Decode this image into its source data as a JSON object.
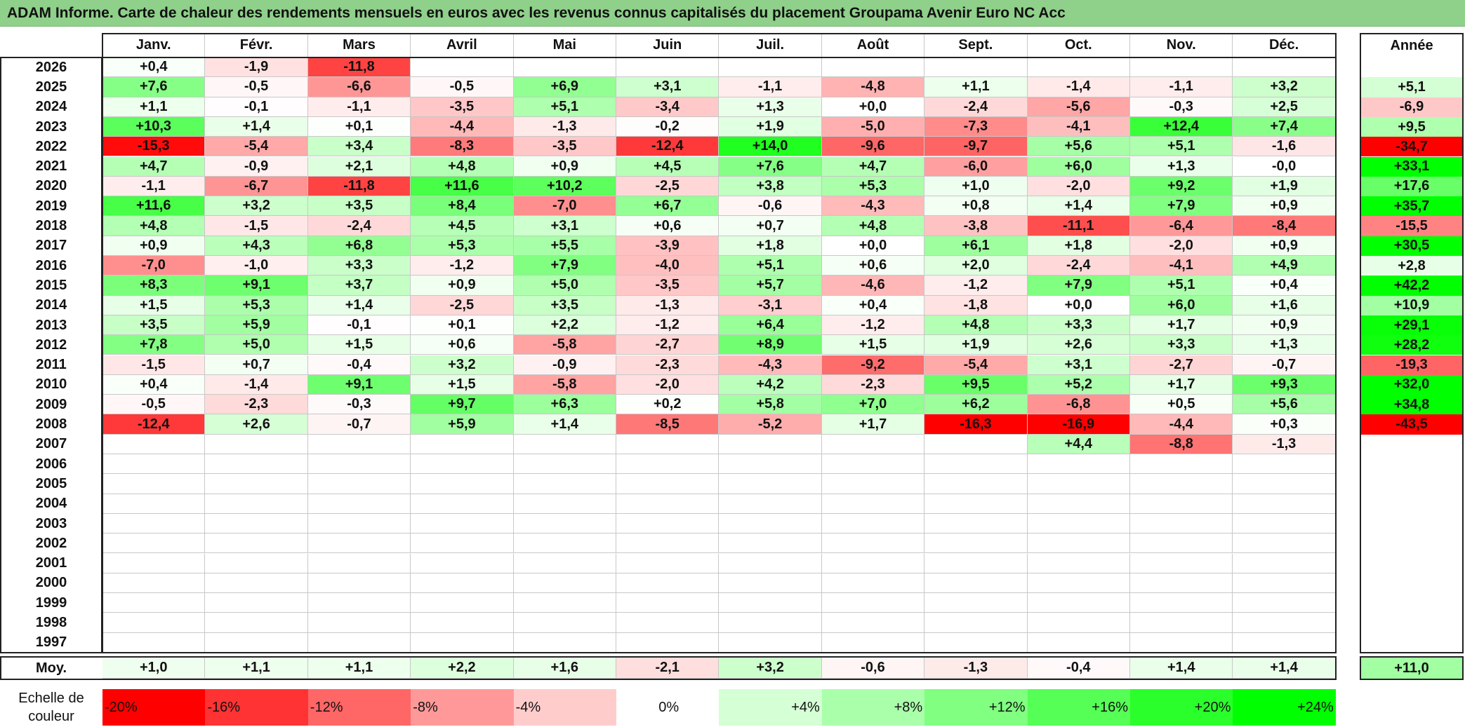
{
  "title": "ADAM Informe. Carte de chaleur des rendements mensuels en euros avec les revenus connus capitalisés du placement Groupama Avenir Euro NC Acc",
  "chart_data": {
    "type": "heatmap",
    "title": "ADAM Informe. Carte de chaleur des rendements mensuels en euros avec les revenus connus capitalisés du placement Groupama Avenir Euro NC Acc",
    "months": [
      "Janv.",
      "Févr.",
      "Mars",
      "Avril",
      "Mai",
      "Juin",
      "Juil.",
      "Août",
      "Sept.",
      "Oct.",
      "Nov.",
      "Déc."
    ],
    "year_header": "Année",
    "rows": [
      {
        "year": "2026",
        "values": [
          "+0,4",
          "-1,9",
          "-11,8",
          "",
          "",
          "",
          "",
          "",
          "",
          "",
          "",
          ""
        ],
        "annual": ""
      },
      {
        "year": "2025",
        "values": [
          "+7,6",
          "-0,5",
          "-6,6",
          "-0,5",
          "+6,9",
          "+3,1",
          "-1,1",
          "-4,8",
          "+1,1",
          "-1,4",
          "-1,1",
          "+3,2"
        ],
        "annual": "+5,1"
      },
      {
        "year": "2024",
        "values": [
          "+1,1",
          "-0,1",
          "-1,1",
          "-3,5",
          "+5,1",
          "-3,4",
          "+1,3",
          "+0,0",
          "-2,4",
          "-5,6",
          "-0,3",
          "+2,5"
        ],
        "annual": "-6,9"
      },
      {
        "year": "2023",
        "values": [
          "+10,3",
          "+1,4",
          "+0,1",
          "-4,4",
          "-1,3",
          "-0,2",
          "+1,9",
          "-5,0",
          "-7,3",
          "-4,1",
          "+12,4",
          "+7,4"
        ],
        "annual": "+9,5"
      },
      {
        "year": "2022",
        "values": [
          "-15,3",
          "-5,4",
          "+3,4",
          "-8,3",
          "-3,5",
          "-12,4",
          "+14,0",
          "-9,6",
          "-9,7",
          "+5,6",
          "+5,1",
          "-1,6"
        ],
        "annual": "-34,7"
      },
      {
        "year": "2021",
        "values": [
          "+4,7",
          "-0,9",
          "+2,1",
          "+4,8",
          "+0,9",
          "+4,5",
          "+7,6",
          "+4,7",
          "-6,0",
          "+6,0",
          "+1,3",
          "-0,0"
        ],
        "annual": "+33,1"
      },
      {
        "year": "2020",
        "values": [
          "-1,1",
          "-6,7",
          "-11,8",
          "+11,6",
          "+10,2",
          "-2,5",
          "+3,8",
          "+5,3",
          "+1,0",
          "-2,0",
          "+9,2",
          "+1,9"
        ],
        "annual": "+17,6"
      },
      {
        "year": "2019",
        "values": [
          "+11,6",
          "+3,2",
          "+3,5",
          "+8,4",
          "-7,0",
          "+6,7",
          "-0,6",
          "-4,3",
          "+0,8",
          "+1,4",
          "+7,9",
          "+0,9"
        ],
        "annual": "+35,7"
      },
      {
        "year": "2018",
        "values": [
          "+4,8",
          "-1,5",
          "-2,4",
          "+4,5",
          "+3,1",
          "+0,6",
          "+0,7",
          "+4,8",
          "-3,8",
          "-11,1",
          "-6,4",
          "-8,4"
        ],
        "annual": "-15,5"
      },
      {
        "year": "2017",
        "values": [
          "+0,9",
          "+4,3",
          "+6,8",
          "+5,3",
          "+5,5",
          "-3,9",
          "+1,8",
          "+0,0",
          "+6,1",
          "+1,8",
          "-2,0",
          "+0,9"
        ],
        "annual": "+30,5"
      },
      {
        "year": "2016",
        "values": [
          "-7,0",
          "-1,0",
          "+3,3",
          "-1,2",
          "+7,9",
          "-4,0",
          "+5,1",
          "+0,6",
          "+2,0",
          "-2,4",
          "-4,1",
          "+4,9"
        ],
        "annual": "+2,8"
      },
      {
        "year": "2015",
        "values": [
          "+8,3",
          "+9,1",
          "+3,7",
          "+0,9",
          "+5,0",
          "-3,5",
          "+5,7",
          "-4,6",
          "-1,2",
          "+7,9",
          "+5,1",
          "+0,4"
        ],
        "annual": "+42,2"
      },
      {
        "year": "2014",
        "values": [
          "+1,5",
          "+5,3",
          "+1,4",
          "-2,5",
          "+3,5",
          "-1,3",
          "-3,1",
          "+0,4",
          "-1,8",
          "+0,0",
          "+6,0",
          "+1,6"
        ],
        "annual": "+10,9"
      },
      {
        "year": "2013",
        "values": [
          "+3,5",
          "+5,9",
          "-0,1",
          "+0,1",
          "+2,2",
          "-1,2",
          "+6,4",
          "-1,2",
          "+4,8",
          "+3,3",
          "+1,7",
          "+0,9"
        ],
        "annual": "+29,1"
      },
      {
        "year": "2012",
        "values": [
          "+7,8",
          "+5,0",
          "+1,5",
          "+0,6",
          "-5,8",
          "-2,7",
          "+8,9",
          "+1,5",
          "+1,9",
          "+2,6",
          "+3,3",
          "+1,3"
        ],
        "annual": "+28,2"
      },
      {
        "year": "2011",
        "values": [
          "-1,5",
          "+0,7",
          "-0,4",
          "+3,2",
          "-0,9",
          "-2,3",
          "-4,3",
          "-9,2",
          "-5,4",
          "+3,1",
          "-2,7",
          "-0,7"
        ],
        "annual": "-19,3"
      },
      {
        "year": "2010",
        "values": [
          "+0,4",
          "-1,4",
          "+9,1",
          "+1,5",
          "-5,8",
          "-2,0",
          "+4,2",
          "-2,3",
          "+9,5",
          "+5,2",
          "+1,7",
          "+9,3"
        ],
        "annual": "+32,0"
      },
      {
        "year": "2009",
        "values": [
          "-0,5",
          "-2,3",
          "-0,3",
          "+9,7",
          "+6,3",
          "+0,2",
          "+5,8",
          "+7,0",
          "+6,2",
          "-6,8",
          "+0,5",
          "+5,6"
        ],
        "annual": "+34,8"
      },
      {
        "year": "2008",
        "values": [
          "-12,4",
          "+2,6",
          "-0,7",
          "+5,9",
          "+1,4",
          "-8,5",
          "-5,2",
          "+1,7",
          "-16,3",
          "-16,9",
          "-4,4",
          "+0,3"
        ],
        "annual": "-43,5"
      },
      {
        "year": "2007",
        "values": [
          "",
          "",
          "",
          "",
          "",
          "",
          "",
          "",
          "",
          "+4,4",
          "-8,8",
          "-1,3"
        ],
        "annual": ""
      },
      {
        "year": "2006",
        "values": [
          "",
          "",
          "",
          "",
          "",
          "",
          "",
          "",
          "",
          "",
          "",
          ""
        ],
        "annual": ""
      },
      {
        "year": "2005",
        "values": [
          "",
          "",
          "",
          "",
          "",
          "",
          "",
          "",
          "",
          "",
          "",
          ""
        ],
        "annual": ""
      },
      {
        "year": "2004",
        "values": [
          "",
          "",
          "",
          "",
          "",
          "",
          "",
          "",
          "",
          "",
          "",
          ""
        ],
        "annual": ""
      },
      {
        "year": "2003",
        "values": [
          "",
          "",
          "",
          "",
          "",
          "",
          "",
          "",
          "",
          "",
          "",
          ""
        ],
        "annual": ""
      },
      {
        "year": "2002",
        "values": [
          "",
          "",
          "",
          "",
          "",
          "",
          "",
          "",
          "",
          "",
          "",
          ""
        ],
        "annual": ""
      },
      {
        "year": "2001",
        "values": [
          "",
          "",
          "",
          "",
          "",
          "",
          "",
          "",
          "",
          "",
          "",
          ""
        ],
        "annual": ""
      },
      {
        "year": "2000",
        "values": [
          "",
          "",
          "",
          "",
          "",
          "",
          "",
          "",
          "",
          "",
          "",
          ""
        ],
        "annual": ""
      },
      {
        "year": "1999",
        "values": [
          "",
          "",
          "",
          "",
          "",
          "",
          "",
          "",
          "",
          "",
          "",
          ""
        ],
        "annual": ""
      },
      {
        "year": "1998",
        "values": [
          "",
          "",
          "",
          "",
          "",
          "",
          "",
          "",
          "",
          "",
          "",
          ""
        ],
        "annual": ""
      },
      {
        "year": "1997",
        "values": [
          "",
          "",
          "",
          "",
          "",
          "",
          "",
          "",
          "",
          "",
          "",
          ""
        ],
        "annual": ""
      }
    ],
    "average": {
      "label": "Moy.",
      "values": [
        "+1,0",
        "+1,1",
        "+1,1",
        "+2,2",
        "+1,6",
        "-2,1",
        "+3,2",
        "-0,6",
        "-1,3",
        "-0,4",
        "+1,4",
        "+1,4"
      ],
      "annual": "+11,0"
    },
    "scale": {
      "label": "Echelle de couleur",
      "steps": [
        {
          "label": "-20%",
          "value": -20
        },
        {
          "label": "-16%",
          "value": -16
        },
        {
          "label": "-12%",
          "value": -12
        },
        {
          "label": "-8%",
          "value": -8
        },
        {
          "label": "-4%",
          "value": -4
        },
        {
          "label": "0%",
          "value": 0
        },
        {
          "label": "+4%",
          "value": 4
        },
        {
          "label": "+8%",
          "value": 8
        },
        {
          "label": "+12%",
          "value": 12
        },
        {
          "label": "+16%",
          "value": 16
        },
        {
          "label": "+20%",
          "value": 20
        },
        {
          "label": "+24%",
          "value": 24
        }
      ]
    },
    "colors": {
      "negative_max": "#ff0000",
      "zero": "#ffffff",
      "positive_max": "#00ff00"
    }
  }
}
